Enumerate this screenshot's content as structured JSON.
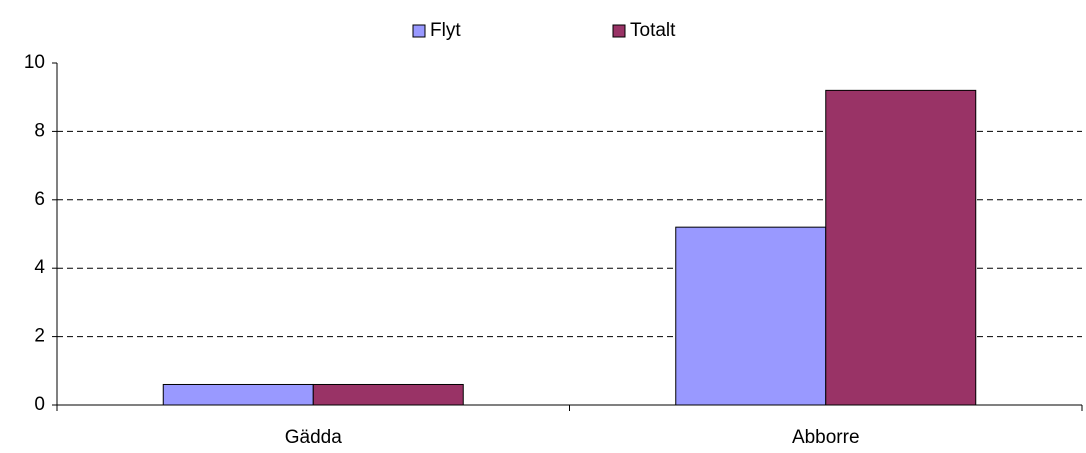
{
  "chart_data": {
    "type": "bar",
    "categories": [
      "Gädda",
      "Abborre"
    ],
    "series": [
      {
        "name": "Flyt",
        "color": "#9999ff",
        "values": [
          0.6,
          5.2
        ]
      },
      {
        "name": "Totalt",
        "color": "#993366",
        "values": [
          0.6,
          9.2
        ]
      }
    ],
    "ylim": [
      0,
      10
    ],
    "yticks": [
      0,
      2,
      4,
      6,
      8,
      10
    ],
    "grid": true,
    "legend": "top"
  }
}
